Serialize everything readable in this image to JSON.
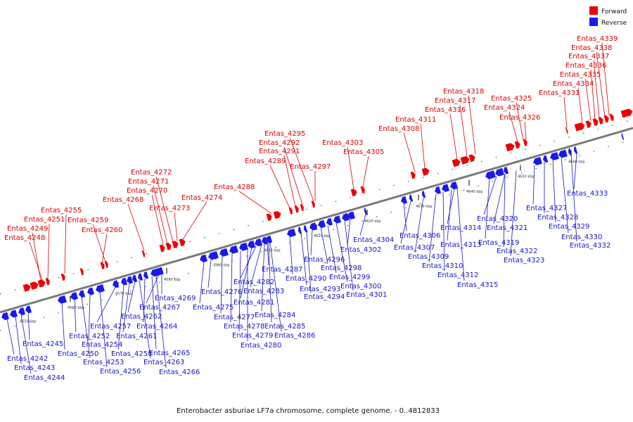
{
  "caption": "Enterobacter asburiae LF7a chromosome, complete genome. - 0..4812833",
  "legend": [
    {
      "label": "Forward",
      "color": "#ee0000"
    },
    {
      "label": "Reverse",
      "color": "#1a1aee"
    }
  ],
  "colors": {
    "forward": "#ee0000",
    "reverse": "#1a1aee",
    "forward_label": "#dd0000",
    "reverse_label": "#1515cc",
    "backbone": "#7a7a7a"
  },
  "ticks": [
    "4550 kbp",
    "4560 kbp",
    "4570 kbp",
    "4580 kbp",
    "4590 kbp",
    "4600 kbp",
    "4610 kbp",
    "4620 kbp",
    "4630 kbp",
    "4640 kbp",
    "4650 kbp",
    "4660 kbp"
  ],
  "forward_labels": [
    "Entas_4248",
    "Entas_4249",
    "Entas_4251",
    "Entas_4255",
    "Entas_4259",
    "Entas_4260",
    "Entas_4268",
    "Entas_4270",
    "Entas_4271",
    "Entas_4272",
    "Entas_4273",
    "Entas_4274",
    "Entas_4288",
    "Entas_4289",
    "Entas_4291",
    "Entas_4292",
    "Entas_4295",
    "Entas_4297",
    "Entas_4303",
    "Entas_4305",
    "Entas_4308",
    "Entas_4311",
    "Entas_4316",
    "Entas_4317",
    "Entas_4318",
    "Entas_4324",
    "Entas_4325",
    "Entas_4326",
    "Entas_4331",
    "Entas_4334",
    "Entas_4335",
    "Entas_4336",
    "Entas_4337",
    "Entas_4338",
    "Entas_4339"
  ],
  "reverse_labels": [
    "Entas_4242",
    "Entas_4243",
    "Entas_4244",
    "Entas_4245",
    "Entas_4250",
    "Entas_4252",
    "Entas_4253",
    "Entas_4254",
    "Entas_4256",
    "Entas_4257",
    "Entas_4258",
    "Entas_4261",
    "Entas_4262",
    "Entas_4263",
    "Entas_4264",
    "Entas_4265",
    "Entas_4266",
    "Entas_4267",
    "Entas_4269",
    "Entas_4275",
    "Entas_4276",
    "Entas_4277",
    "Entas_4278",
    "Entas_4279",
    "Entas_4280",
    "Entas_4281",
    "Entas_4282",
    "Entas_4283",
    "Entas_4284",
    "Entas_4285",
    "Entas_4286",
    "Entas_4287",
    "Entas_4290",
    "Entas_4293",
    "Entas_4294",
    "Entas_4296",
    "Entas_4298",
    "Entas_4299",
    "Entas_4300",
    "Entas_4301",
    "Entas_4302",
    "Entas_4304",
    "Entas_4306",
    "Entas_4307",
    "Entas_4309",
    "Entas_4310",
    "Entas_4312",
    "Entas_4313",
    "Entas_4314",
    "Entas_4315",
    "Entas_4319",
    "Entas_4320",
    "Entas_4321",
    "Entas_4322",
    "Entas_4323",
    "Entas_4327",
    "Entas_4328",
    "Entas_4329",
    "Entas_4330",
    "Entas_4332",
    "Entas_4333"
  ]
}
